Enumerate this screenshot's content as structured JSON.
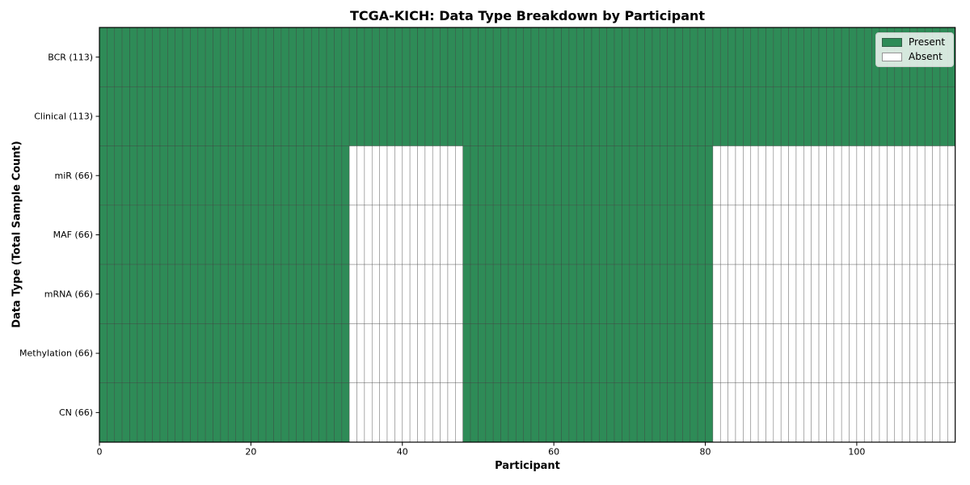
{
  "chart_data": {
    "type": "heatmap",
    "title": "TCGA-KICH: Data Type Breakdown by Participant",
    "xlabel": "Participant",
    "ylabel": "Data Type (Total Sample Count)",
    "x_ticks": [
      0,
      20,
      40,
      60,
      80,
      100
    ],
    "x_range": [
      0,
      113
    ],
    "n_participants": 113,
    "rows": [
      {
        "label": "BCR (113)",
        "data_type": "BCR",
        "total_samples": 113,
        "present_ranges": [
          [
            0,
            113
          ]
        ]
      },
      {
        "label": "Clinical (113)",
        "data_type": "Clinical",
        "total_samples": 113,
        "present_ranges": [
          [
            0,
            113
          ]
        ]
      },
      {
        "label": "miR (66)",
        "data_type": "miR",
        "total_samples": 66,
        "present_ranges": [
          [
            0,
            33
          ],
          [
            48,
            81
          ]
        ]
      },
      {
        "label": "MAF (66)",
        "data_type": "MAF",
        "total_samples": 66,
        "present_ranges": [
          [
            0,
            33
          ],
          [
            48,
            81
          ]
        ]
      },
      {
        "label": "mRNA (66)",
        "data_type": "mRNA",
        "total_samples": 66,
        "present_ranges": [
          [
            0,
            33
          ],
          [
            48,
            81
          ]
        ]
      },
      {
        "label": "Methylation (66)",
        "data_type": "Methylation",
        "total_samples": 66,
        "present_ranges": [
          [
            0,
            33
          ],
          [
            48,
            81
          ]
        ]
      },
      {
        "label": "CN (66)",
        "data_type": "CN",
        "total_samples": 66,
        "present_ranges": [
          [
            0,
            33
          ],
          [
            48,
            81
          ]
        ]
      }
    ],
    "legend": {
      "position": "upper right",
      "entries": [
        {
          "label": "Present",
          "color": "#2e8b57"
        },
        {
          "label": "Absent",
          "color": "#ffffff"
        }
      ]
    },
    "colors": {
      "present": "#2e8b57",
      "absent": "#ffffff",
      "cell_edge": "#3c3c3c",
      "spine": "#000000"
    },
    "grid": "cell-borders",
    "legend_title": ""
  }
}
